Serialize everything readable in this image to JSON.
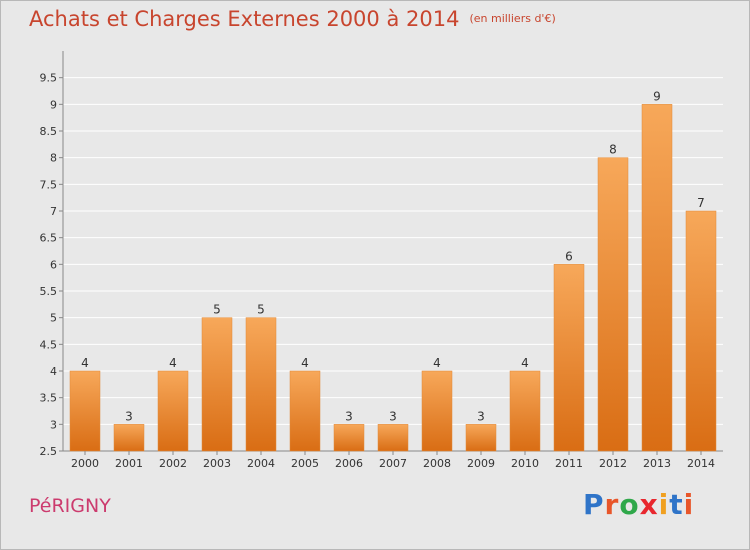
{
  "header": {
    "title": "Achats et Charges Externes 2000 à 2014",
    "subtitle": "(en milliers d'€)"
  },
  "footer": {
    "place": "PéRIGNY",
    "logo_letters": [
      "P",
      "r",
      "o",
      "x",
      "i",
      "t",
      "i"
    ],
    "logo_colors": [
      "#2f74c8",
      "#e8562a",
      "#2fa84a",
      "#e8272e",
      "#f0a020",
      "#2f74c8",
      "#e8562a"
    ]
  },
  "colors": {
    "bar_top": "#f7a85a",
    "bar_bottom": "#d96d14",
    "grid": "#ffffff",
    "axis_text": "#333333"
  },
  "chart_data": {
    "type": "bar",
    "categories": [
      "2000",
      "2001",
      "2002",
      "2003",
      "2004",
      "2005",
      "2006",
      "2007",
      "2008",
      "2009",
      "2010",
      "2011",
      "2012",
      "2013",
      "2014"
    ],
    "values": [
      4,
      3,
      4,
      5,
      5,
      4,
      3,
      3,
      4,
      3,
      4,
      6,
      8,
      9,
      7
    ],
    "title": "Achats et Charges Externes 2000 à 2014",
    "ylim": [
      2.5,
      10
    ],
    "yticks": [
      2.5,
      3,
      3.5,
      4,
      4.5,
      5,
      5.5,
      6,
      6.5,
      7,
      7.5,
      8,
      8.5,
      9,
      9.5
    ],
    "grid": true,
    "data_labels": true
  }
}
